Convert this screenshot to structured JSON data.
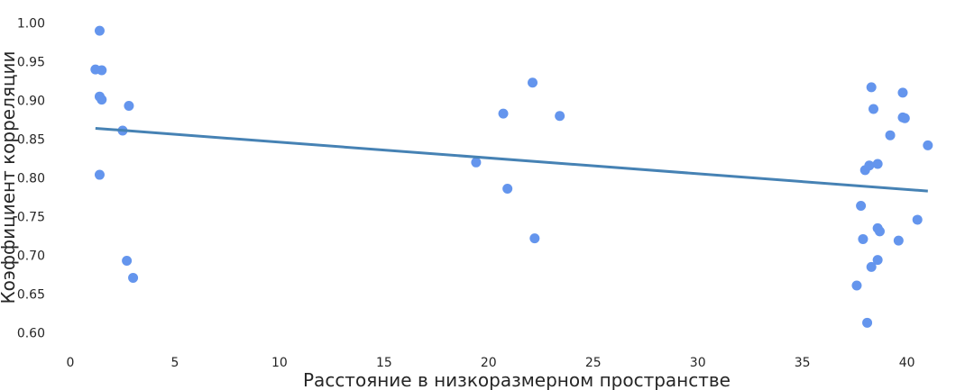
{
  "chart_data": {
    "type": "scatter",
    "title": "",
    "xlabel": "Расстояние в низкоразмерном пространстве",
    "ylabel": "Коэффициент корреляции",
    "xlim": [
      0,
      42
    ],
    "ylim": [
      0.575,
      1.025
    ],
    "x_ticks": [
      "0",
      "5",
      "10",
      "15",
      "20",
      "25",
      "30",
      "35",
      "40"
    ],
    "y_ticks": [
      "0.60",
      "0.65",
      "0.70",
      "0.75",
      "0.80",
      "0.85",
      "0.90",
      "0.95",
      "1.00"
    ],
    "grid": false,
    "legend": "none",
    "point_color": "#6495ED",
    "line_color": "#4682B4",
    "points": [
      {
        "x": 1.4,
        "y": 0.99
      },
      {
        "x": 1.2,
        "y": 0.94
      },
      {
        "x": 1.5,
        "y": 0.939
      },
      {
        "x": 1.4,
        "y": 0.905
      },
      {
        "x": 1.5,
        "y": 0.901
      },
      {
        "x": 2.8,
        "y": 0.893
      },
      {
        "x": 2.5,
        "y": 0.861
      },
      {
        "x": 1.4,
        "y": 0.804
      },
      {
        "x": 2.7,
        "y": 0.693
      },
      {
        "x": 3.0,
        "y": 0.671
      },
      {
        "x": 19.4,
        "y": 0.82
      },
      {
        "x": 20.7,
        "y": 0.883
      },
      {
        "x": 20.9,
        "y": 0.786
      },
      {
        "x": 22.1,
        "y": 0.923
      },
      {
        "x": 22.2,
        "y": 0.722
      },
      {
        "x": 23.4,
        "y": 0.88
      },
      {
        "x": 37.6,
        "y": 0.661
      },
      {
        "x": 37.8,
        "y": 0.764
      },
      {
        "x": 37.9,
        "y": 0.721
      },
      {
        "x": 38.0,
        "y": 0.81
      },
      {
        "x": 38.1,
        "y": 0.613
      },
      {
        "x": 38.2,
        "y": 0.816
      },
      {
        "x": 38.3,
        "y": 0.685
      },
      {
        "x": 38.3,
        "y": 0.917
      },
      {
        "x": 38.4,
        "y": 0.889
      },
      {
        "x": 38.6,
        "y": 0.818
      },
      {
        "x": 38.6,
        "y": 0.694
      },
      {
        "x": 38.6,
        "y": 0.735
      },
      {
        "x": 38.7,
        "y": 0.731
      },
      {
        "x": 39.2,
        "y": 0.855
      },
      {
        "x": 39.6,
        "y": 0.719
      },
      {
        "x": 39.8,
        "y": 0.91
      },
      {
        "x": 39.8,
        "y": 0.878
      },
      {
        "x": 39.9,
        "y": 0.877
      },
      {
        "x": 40.5,
        "y": 0.746
      },
      {
        "x": 41.0,
        "y": 0.842
      }
    ],
    "trend_line": {
      "x": [
        1.2,
        41.0
      ],
      "y": [
        0.864,
        0.783
      ]
    }
  }
}
